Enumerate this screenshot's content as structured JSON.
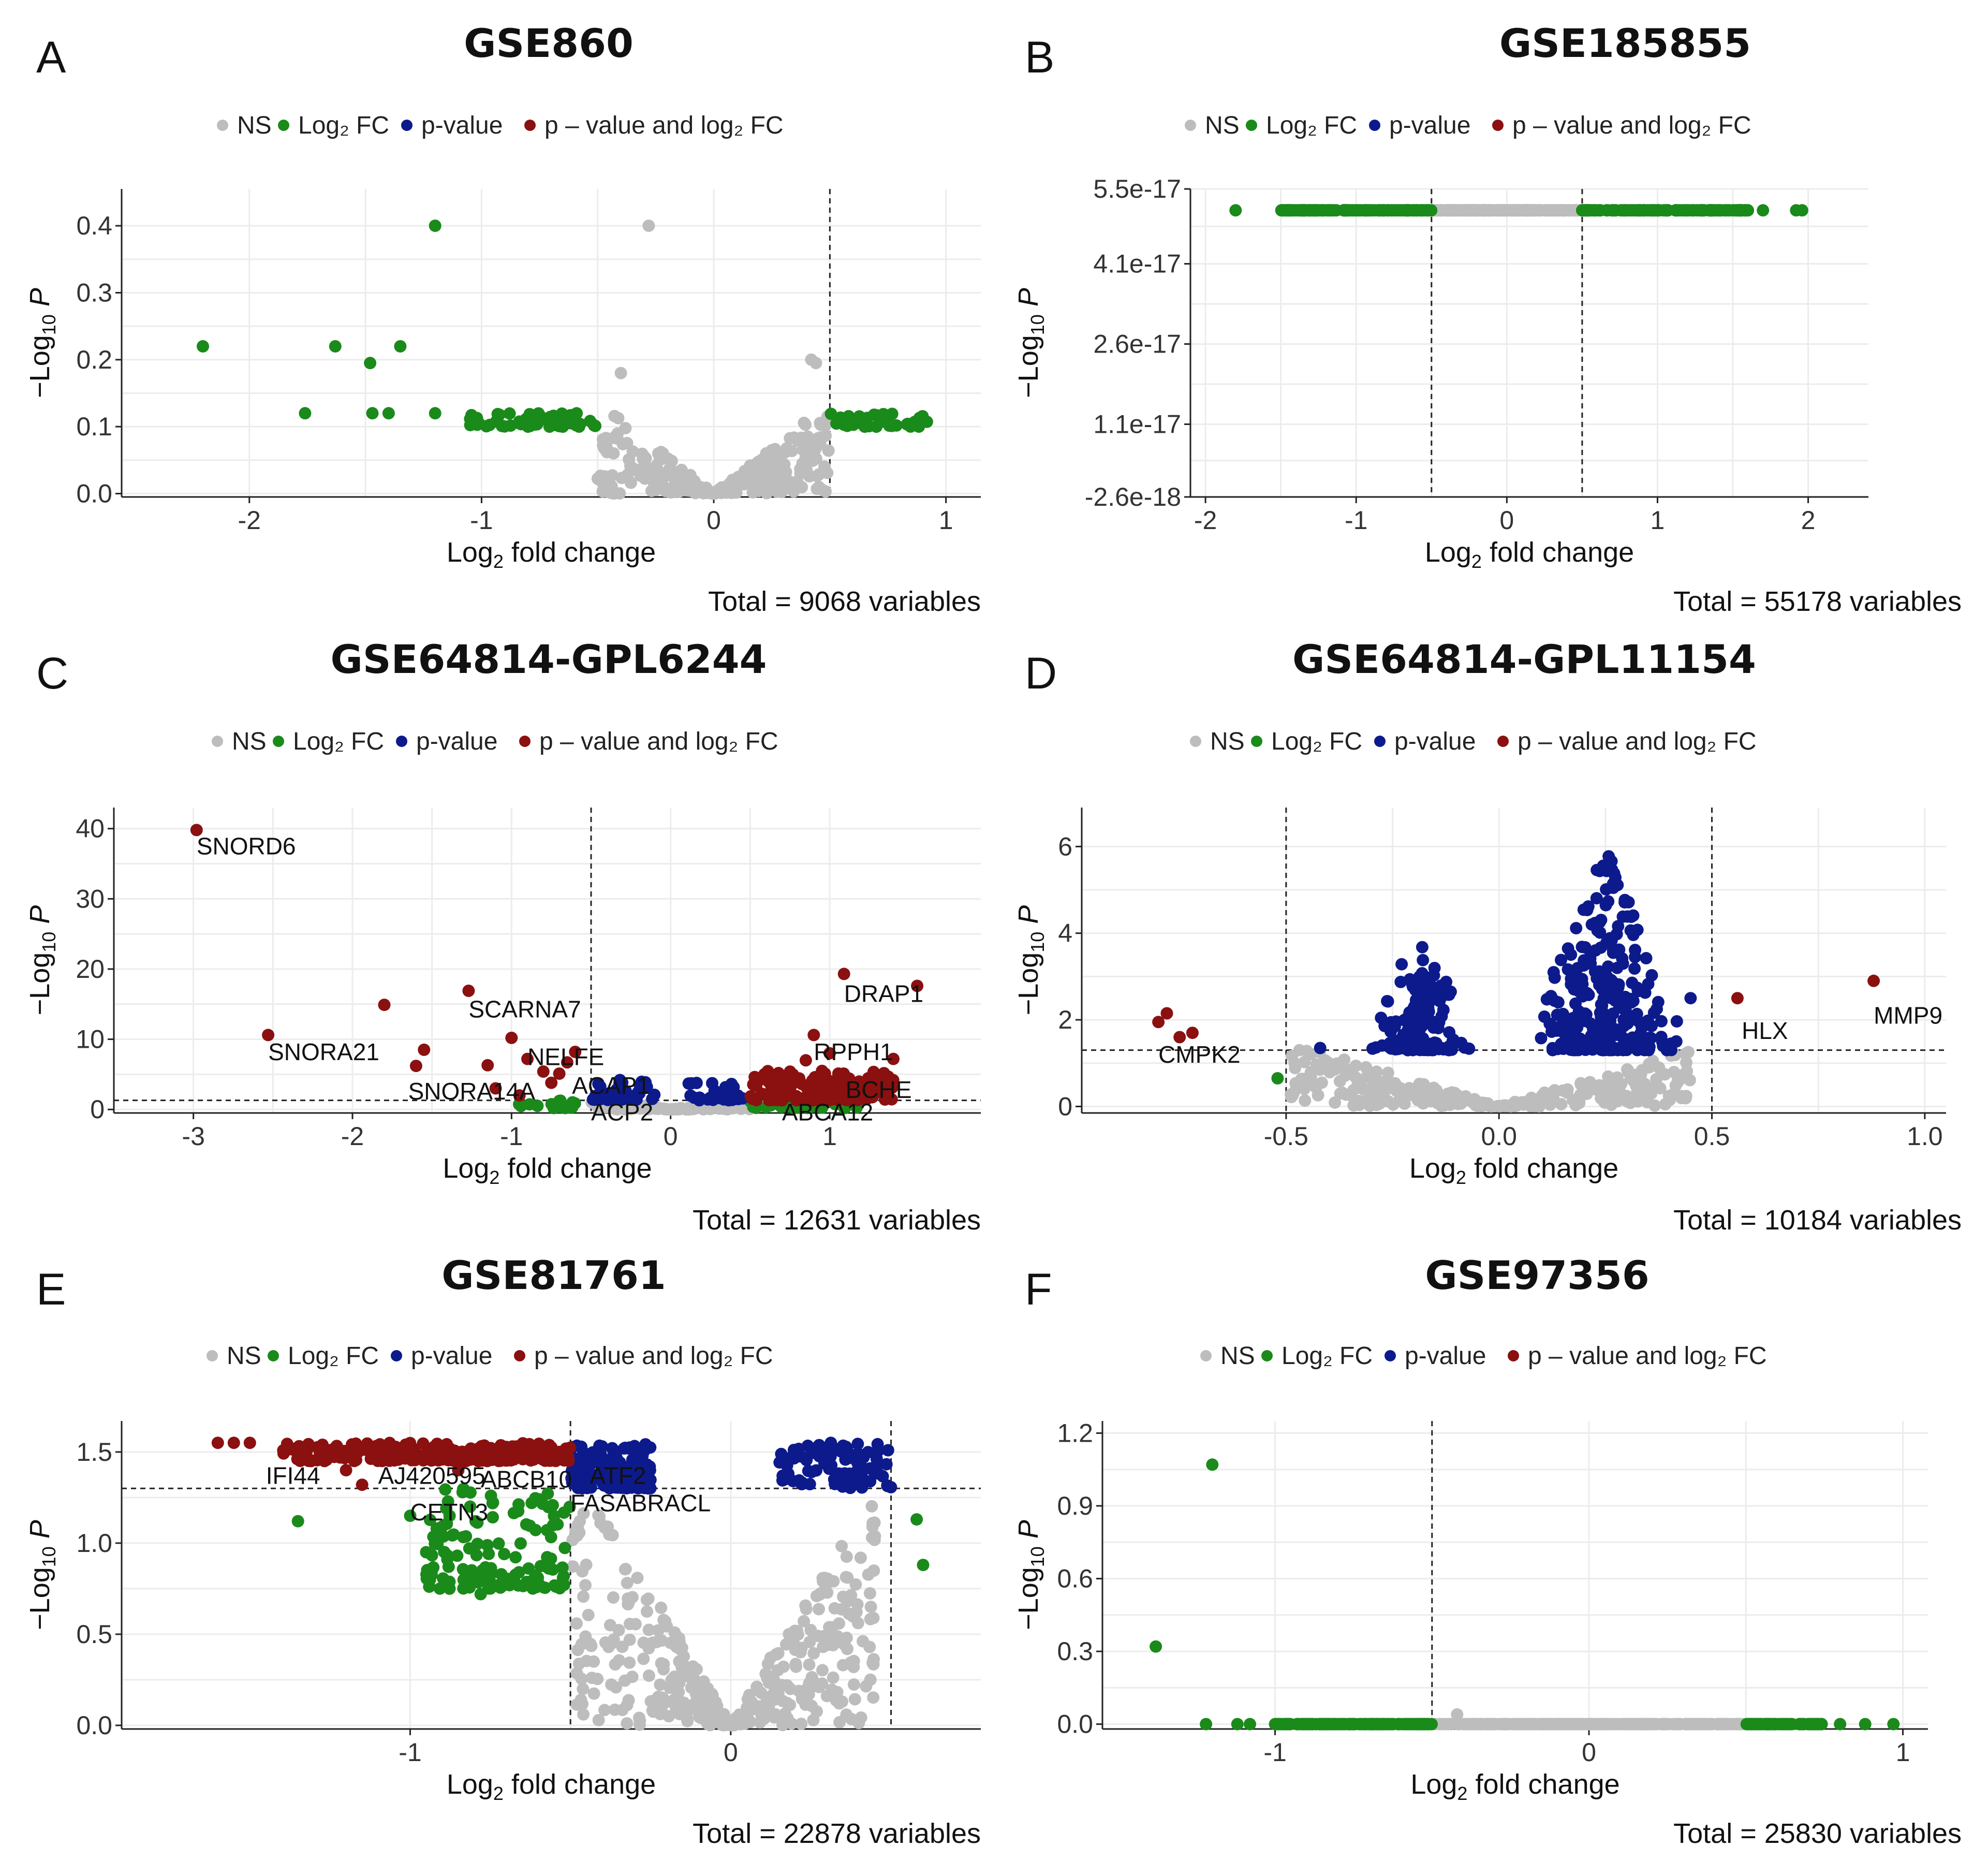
{
  "figure": {
    "legend_items": [
      {
        "key": "ns",
        "label": "NS"
      },
      {
        "key": "fc",
        "label": "Log₂ FC"
      },
      {
        "key": "p",
        "label": "p-value"
      },
      {
        "key": "pfc",
        "label": "p – value and log₂ FC"
      }
    ],
    "colors": {
      "ns": "#bdbdbd",
      "fc": "#1a8a1a",
      "p": "#0d1a8c",
      "pfc": "#8b1010",
      "grid": "#ececec"
    },
    "x_axis_label": "Log₂ fold change",
    "y_axis_label": "−Log₁₀ P"
  },
  "chart_data": [
    {
      "panel": "A",
      "type": "scatter",
      "title": "GSE860",
      "total": "Total = 9068 variables",
      "xlim": [
        -2.55,
        1.15
      ],
      "ylim": [
        -0.005,
        0.455
      ],
      "xticks": [
        -2,
        -1,
        0,
        1
      ],
      "yticks": [
        0.0,
        0.1,
        0.2,
        0.3,
        0.4
      ],
      "ytick_labels": [
        "0.0",
        "0.1",
        "0.2",
        "0.3",
        "0.4"
      ],
      "fc_cutoff": 0.5,
      "p_line": null,
      "vlines": [
        0.5
      ],
      "annotations": [],
      "groups": {
        "ns": {
          "seed": 11,
          "shape": "v",
          "n": 260,
          "xr": [
            -0.5,
            0.5
          ],
          "yr": [
            0.0,
            0.12
          ],
          "extra": [
            [
              -0.28,
              0.4
            ],
            [
              -0.4,
              0.18
            ],
            [
              0.42,
              0.2
            ],
            [
              0.44,
              0.195
            ]
          ]
        },
        "fc": {
          "seed": 12,
          "shape": "band",
          "n": 90,
          "xr": [
            -1.05,
            0.92
          ],
          "yr": [
            0.1,
            0.12
          ],
          "skip": [
            -0.5,
            0.5
          ],
          "extra": [
            [
              -1.2,
              0.4
            ],
            [
              -2.2,
              0.22
            ],
            [
              -1.63,
              0.22
            ],
            [
              -1.48,
              0.195
            ],
            [
              -1.35,
              0.22
            ],
            [
              -1.76,
              0.12
            ],
            [
              -1.47,
              0.12
            ],
            [
              -1.4,
              0.12
            ],
            [
              -1.2,
              0.12
            ],
            [
              -0.8,
              0.1
            ],
            [
              -0.65,
              0.1
            ],
            [
              -0.58,
              0.1
            ],
            [
              0.65,
              0.1
            ],
            [
              0.7,
              0.1
            ]
          ]
        }
      }
    },
    {
      "panel": "B",
      "type": "scatter",
      "title": "GSE185855",
      "total": "Total = 55178 variables",
      "xlim": [
        -2.1,
        2.4
      ],
      "ylim": [
        -2.6e-18,
        5.5e-17
      ],
      "xticks": [
        -2,
        -1,
        0,
        1,
        2
      ],
      "yticks": [
        -2.6e-18,
        1.1e-17,
        2.6e-17,
        4.1e-17,
        5.5e-17
      ],
      "ytick_labels": [
        "-2.6e-18",
        "1.1e-17",
        "2.6e-17",
        "4.1e-17",
        "5.5e-17"
      ],
      "fc_cutoff": 0.5,
      "p_line": null,
      "vlines": [
        -0.5,
        0.5
      ],
      "annotations": [],
      "groups": {
        "ns": {
          "seed": 21,
          "shape": "line",
          "n": 260,
          "xr": [
            -0.5,
            0.5
          ],
          "yval": 5.1e-17
        },
        "fc": {
          "seed": 22,
          "shape": "line",
          "n": 300,
          "xr": [
            -1.5,
            1.6
          ],
          "yval": 5.1e-17,
          "skip": [
            -0.5,
            0.5
          ],
          "extra": [
            [
              -1.8,
              5.1e-17
            ],
            [
              1.7,
              5.1e-17
            ],
            [
              1.55,
              5.1e-17
            ],
            [
              1.92,
              5.1e-17
            ],
            [
              1.96,
              5.1e-17
            ]
          ]
        }
      }
    },
    {
      "panel": "C",
      "type": "scatter",
      "title": "GSE64814-GPL6244",
      "total": "Total = 12631 variables",
      "xlim": [
        -3.5,
        1.95
      ],
      "ylim": [
        -0.5,
        43
      ],
      "xticks": [
        -3,
        -2,
        -1,
        0,
        1
      ],
      "yticks": [
        0,
        10,
        20,
        30,
        40
      ],
      "ytick_labels": [
        "0",
        "10",
        "20",
        "30",
        "40"
      ],
      "fc_cutoff": 0.5,
      "p_line": 1.3,
      "vlines": [
        -0.5
      ],
      "annotations": [
        {
          "label": "SNORD6",
          "x": -2.98,
          "y": 37.5
        },
        {
          "label": "SCARNA7",
          "x": -1.27,
          "y": 14.3
        },
        {
          "label": "SNORA21",
          "x": -2.53,
          "y": 8.2
        },
        {
          "label": "NELFE",
          "x": -0.9,
          "y": 7.5
        },
        {
          "label": "SNORA14A",
          "x": -1.65,
          "y": 2.6
        },
        {
          "label": "ACAP1",
          "x": -0.62,
          "y": 3.4
        },
        {
          "label": "ACP2",
          "x": -0.5,
          "y": -0.4
        },
        {
          "label": "DRAP1",
          "x": 1.09,
          "y": 16.5
        },
        {
          "label": "RPPH1",
          "x": 0.9,
          "y": 8.2
        },
        {
          "label": "BCHE",
          "x": 1.1,
          "y": 2.8
        },
        {
          "label": "ABCA12",
          "x": 0.7,
          "y": -0.4
        }
      ],
      "groups": {
        "ns": {
          "seed": 31,
          "shape": "v",
          "n": 160,
          "xr": [
            -0.5,
            0.5
          ],
          "yr": [
            0.0,
            1.3
          ]
        },
        "fc": {
          "seed": 32,
          "shape": "band",
          "n": 50,
          "xr": [
            -1.0,
            1.2
          ],
          "yr": [
            0.2,
            1.3
          ],
          "skip": [
            -0.5,
            0.5
          ]
        },
        "p": {
          "seed": 33,
          "shape": "band",
          "n": 70,
          "xr": [
            -0.5,
            0.5
          ],
          "yr": [
            1.3,
            4.2
          ],
          "skip": [
            -0.1,
            0.1
          ]
        },
        "pfc": {
          "seed": 34,
          "shape": "band",
          "n": 150,
          "xr": [
            0.5,
            1.4
          ],
          "yr": [
            1.3,
            5.5
          ],
          "extra": [
            [
              -2.98,
              39.8
            ],
            [
              -1.27,
              16.9
            ],
            [
              -2.53,
              10.6
            ],
            [
              -1.8,
              14.9
            ],
            [
              -1.0,
              10.2
            ],
            [
              -1.55,
              8.5
            ],
            [
              -1.6,
              6.2
            ],
            [
              -0.9,
              7.2
            ],
            [
              -0.8,
              5.4
            ],
            [
              -0.6,
              8.2
            ],
            [
              -1.15,
              6.3
            ],
            [
              -1.1,
              3.0
            ],
            [
              -0.95,
              2.0
            ],
            [
              -0.75,
              3.8
            ],
            [
              -0.7,
              5.1
            ],
            [
              -0.65,
              6.7
            ],
            [
              1.09,
              19.3
            ],
            [
              1.55,
              17.6
            ],
            [
              0.9,
              10.6
            ],
            [
              1.4,
              7.2
            ],
            [
              1.0,
              8.0
            ],
            [
              0.85,
              7.0
            ]
          ]
        }
      }
    },
    {
      "panel": "D",
      "type": "scatter",
      "title": "GSE64814-GPL11154",
      "total": "Total = 10184 variables",
      "xlim": [
        -0.98,
        1.05
      ],
      "ylim": [
        -0.15,
        6.9
      ],
      "xticks": [
        -0.5,
        0.0,
        0.5,
        1.0
      ],
      "xtick_labels": [
        "-0.5",
        "0.0",
        "0.5",
        "1.0"
      ],
      "yticks": [
        0,
        2,
        4,
        6
      ],
      "ytick_labels": [
        "0",
        "2",
        "4",
        "6"
      ],
      "fc_cutoff": 0.5,
      "p_line": 1.3,
      "vlines": [
        -0.5,
        0.5
      ],
      "annotations": [
        {
          "label": "CMPK2",
          "x": -0.8,
          "y": 1.2
        },
        {
          "label": "HLX",
          "x": 0.57,
          "y": 1.75
        },
        {
          "label": "MMP9",
          "x": 0.88,
          "y": 2.1
        }
      ],
      "groups": {
        "ns": {
          "seed": 41,
          "shape": "v",
          "n": 300,
          "xr": [
            -0.5,
            0.45
          ],
          "yr": [
            0.0,
            1.3
          ]
        },
        "fc": {
          "seed": 42,
          "shape": "none",
          "n": 0,
          "extra": [
            [
              -0.52,
              0.65
            ]
          ]
        },
        "p": {
          "seed": 43,
          "shape": "blob",
          "n": 430,
          "blobs": [
            [
              -0.32,
              -0.05,
              1.3,
              4.3
            ],
            [
              0.05,
              0.45,
              1.3,
              6.0
            ]
          ],
          "extra": [
            [
              -0.42,
              1.35
            ],
            [
              0.45,
              2.5
            ]
          ]
        },
        "pfc": {
          "seed": 44,
          "shape": "none",
          "n": 0,
          "extra": [
            [
              -0.8,
              1.95
            ],
            [
              -0.78,
              2.15
            ],
            [
              -0.75,
              1.6
            ],
            [
              -0.72,
              1.7
            ],
            [
              0.56,
              2.5
            ],
            [
              0.88,
              2.9
            ]
          ]
        }
      }
    },
    {
      "panel": "E",
      "type": "scatter",
      "title": "GSE81761",
      "total": "Total = 22878 variables",
      "xlim": [
        -1.9,
        0.78
      ],
      "ylim": [
        -0.02,
        1.67
      ],
      "xticks": [
        -1,
        0
      ],
      "yticks": [
        0.0,
        0.5,
        1.0,
        1.5
      ],
      "ytick_labels": [
        "0.0",
        "0.5",
        "1.0",
        "1.5"
      ],
      "fc_cutoff": 0.5,
      "p_line": 1.3,
      "vlines": [
        -0.5,
        0.5
      ],
      "annotations": [
        {
          "label": "IFI44",
          "x": -1.45,
          "y": 1.37
        },
        {
          "label": "AJ420595",
          "x": -1.1,
          "y": 1.37
        },
        {
          "label": "ABCB10",
          "x": -0.78,
          "y": 1.35
        },
        {
          "label": "ATF2",
          "x": -0.44,
          "y": 1.37
        },
        {
          "label": "CETN3",
          "x": -1.0,
          "y": 1.17
        },
        {
          "label": "FASABRACL",
          "x": -0.5,
          "y": 1.22
        }
      ],
      "groups": {
        "ns": {
          "seed": 51,
          "shape": "v",
          "n": 400,
          "xr": [
            -0.5,
            0.45
          ],
          "yr": [
            0.0,
            1.3
          ]
        },
        "fc": {
          "seed": 52,
          "shape": "band",
          "n": 130,
          "xr": [
            -0.95,
            -0.5
          ],
          "yr": [
            0.75,
            1.3
          ],
          "extra": [
            [
              -1.35,
              1.12
            ],
            [
              -1.0,
              1.15
            ],
            [
              -0.95,
              0.95
            ],
            [
              -0.88,
              0.87
            ],
            [
              -0.78,
              0.72
            ],
            [
              0.58,
              1.13
            ],
            [
              0.6,
              0.88
            ]
          ]
        },
        "p": {
          "seed": 53,
          "shape": "band",
          "n": 170,
          "xr": [
            -0.5,
            -0.25
          ],
          "yr": [
            1.3,
            1.55
          ],
          "extra2": [
            0.15,
            0.5
          ]
        },
        "pfc": {
          "seed": 54,
          "shape": "band",
          "n": 260,
          "xr": [
            -1.4,
            -0.5
          ],
          "yr": [
            1.45,
            1.55
          ],
          "extra": [
            [
              -1.6,
              1.55
            ],
            [
              -1.55,
              1.55
            ],
            [
              -1.5,
              1.55
            ],
            [
              -1.2,
              1.4
            ],
            [
              -1.15,
              1.32
            ],
            [
              -0.85,
              1.4
            ]
          ]
        }
      }
    },
    {
      "panel": "F",
      "type": "scatter",
      "title": "GSE97356",
      "total": "Total = 25830 variables",
      "xlim": [
        -1.55,
        1.08
      ],
      "ylim": [
        -0.02,
        1.25
      ],
      "xticks": [
        -1,
        0,
        1
      ],
      "yticks": [
        0.0,
        0.3,
        0.6,
        0.9,
        1.2
      ],
      "ytick_labels": [
        "0.0",
        "0.3",
        "0.6",
        "0.9",
        "1.2"
      ],
      "fc_cutoff": 0.5,
      "p_line": null,
      "vlines": [
        -0.5
      ],
      "annotations": [],
      "groups": {
        "ns": {
          "seed": 61,
          "shape": "line",
          "n": 300,
          "xr": [
            -0.5,
            0.5
          ],
          "yval": 0.0,
          "extra": [
            [
              -0.42,
              0.04
            ]
          ]
        },
        "fc": {
          "seed": 62,
          "shape": "line",
          "n": 260,
          "xr": [
            -1.0,
            0.75
          ],
          "yval": 0.0,
          "skip": [
            -0.5,
            0.5
          ],
          "extra": [
            [
              -1.2,
              1.07
            ],
            [
              -1.38,
              0.32
            ],
            [
              -1.22,
              0.0
            ],
            [
              -1.12,
              0.0
            ],
            [
              -1.08,
              0.0
            ],
            [
              0.8,
              0.0
            ],
            [
              0.88,
              0.0
            ],
            [
              0.97,
              0.0
            ]
          ]
        }
      }
    }
  ]
}
